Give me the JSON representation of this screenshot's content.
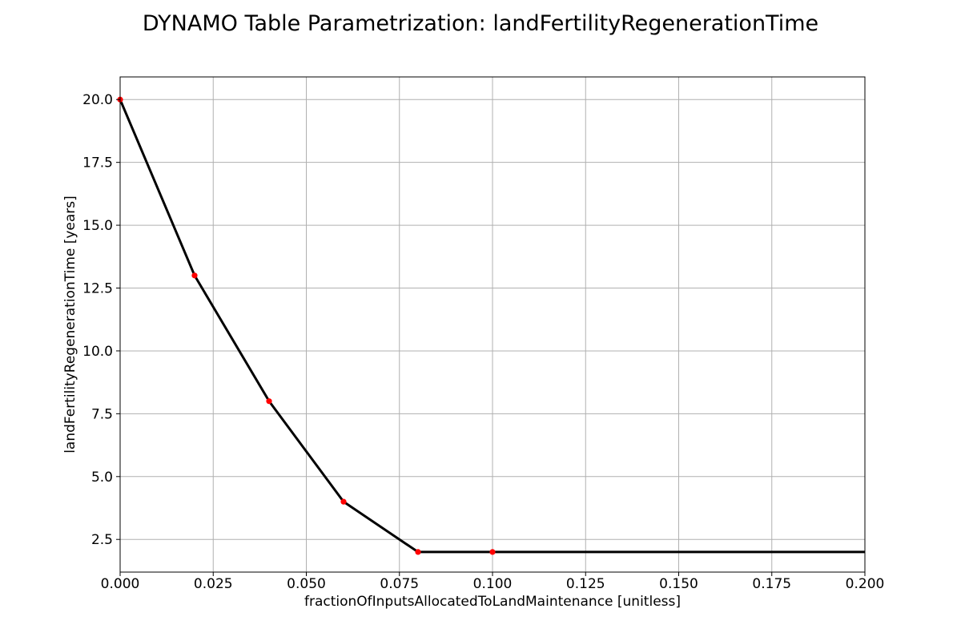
{
  "chart_data": {
    "type": "line",
    "title": "DYNAMO Table Parametrization: landFertilityRegenerationTime",
    "xlabel": "fractionOfInputsAllocatedToLandMaintenance [unitless]",
    "ylabel": "landFertilityRegenerationTime [years]",
    "xlim": [
      0.0,
      0.2
    ],
    "ylim": [
      1.2,
      20.9
    ],
    "xticks": [
      0.0,
      0.025,
      0.05,
      0.075,
      0.1,
      0.125,
      0.15,
      0.175,
      0.2
    ],
    "xtick_labels": [
      "0.000",
      "0.025",
      "0.050",
      "0.075",
      "0.100",
      "0.125",
      "0.150",
      "0.175",
      "0.200"
    ],
    "yticks": [
      2.5,
      5.0,
      7.5,
      10.0,
      12.5,
      15.0,
      17.5,
      20.0
    ],
    "ytick_labels": [
      "2.5",
      "5.0",
      "7.5",
      "10.0",
      "12.5",
      "15.0",
      "17.5",
      "20.0"
    ],
    "grid": true,
    "series": [
      {
        "x": [
          0.0,
          0.02,
          0.04,
          0.06,
          0.08,
          0.1,
          0.2
        ],
        "y": [
          20,
          13,
          8,
          4,
          2,
          2,
          2
        ],
        "color": "#000000"
      }
    ],
    "markers": {
      "x": [
        0.0,
        0.02,
        0.04,
        0.06,
        0.08,
        0.1
      ],
      "y": [
        20,
        13,
        8,
        4,
        2,
        2
      ],
      "color": "#ff0000"
    }
  }
}
